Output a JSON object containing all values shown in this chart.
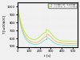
{
  "title": "",
  "xlabel": "t [s]",
  "ylabel": "T [\\u00b0C]",
  "background_color": "#f0f0f0",
  "legend": [
    {
      "label": "z = 2 nodes,  Dt = 0.1 nodes",
      "color": "#55dddd"
    },
    {
      "label": "z = 4 nodes,  Dt = 0.5 nodes",
      "color": "#ffaa44"
    },
    {
      "label": "z = 10 nodes,  Dt = 1.0 nodes",
      "color": "#aaee00"
    }
  ],
  "xlim": [
    0,
    540
  ],
  "ylim": [
    490,
    1050
  ],
  "xticks": [
    0,
    100,
    200,
    300,
    400,
    500
  ],
  "yticks": [
    500,
    600,
    700,
    800,
    900,
    1000
  ]
}
